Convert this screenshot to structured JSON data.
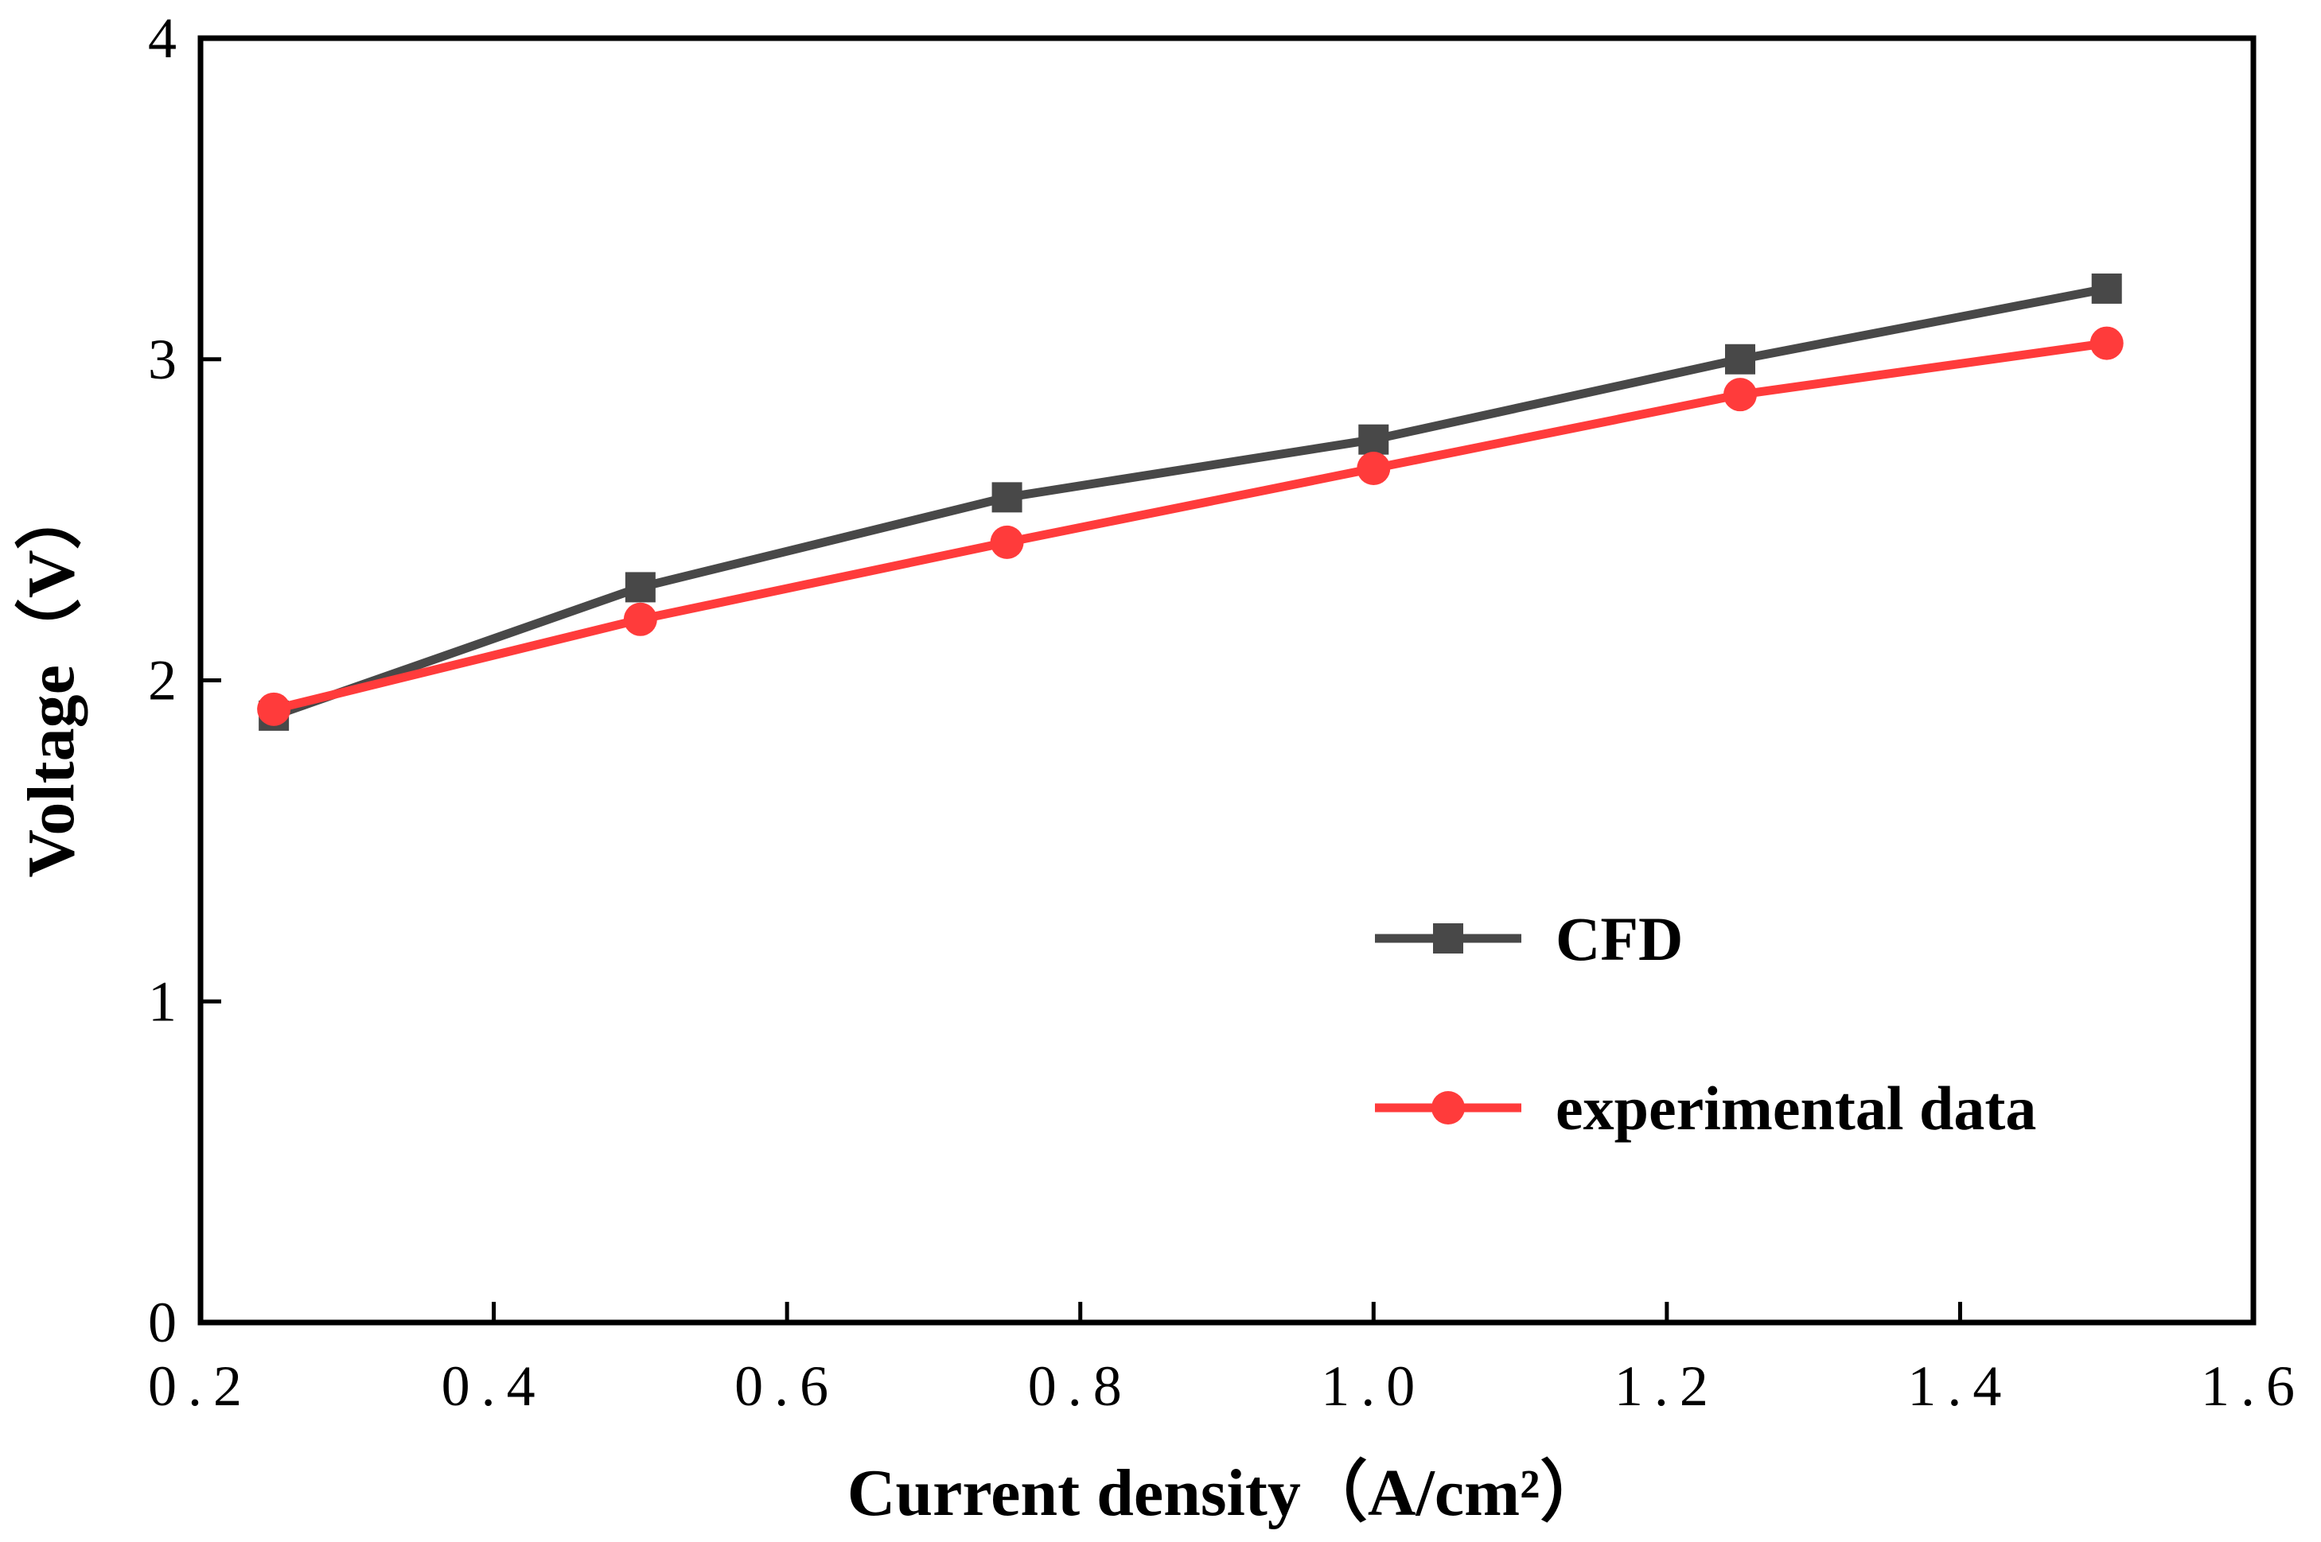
{
  "chart_data": {
    "type": "line",
    "xlabel": "Current density（A/cm²）",
    "ylabel": "Voltage（V）",
    "xlim": [
      0.2,
      1.6
    ],
    "ylim": [
      0,
      4
    ],
    "x_ticks": [
      0.2,
      0.4,
      0.6,
      0.8,
      1.0,
      1.2,
      1.4,
      1.6
    ],
    "x_tick_labels": [
      "0.2",
      "0.4",
      "0.6",
      "0.8",
      "1.0",
      "1.2",
      "1.4",
      "1.6"
    ],
    "y_ticks": [
      0,
      1,
      2,
      3,
      4
    ],
    "y_tick_labels": [
      "0",
      "1",
      "2",
      "3",
      "4"
    ],
    "grid": false,
    "legend_position": "bottom-right",
    "x": [
      0.25,
      0.5,
      0.75,
      1.0,
      1.25,
      1.5
    ],
    "series": [
      {
        "name": "CFD",
        "marker": "square",
        "color": "#484848",
        "values": [
          1.89,
          2.29,
          2.57,
          2.75,
          3.0,
          3.22
        ]
      },
      {
        "name": "experimental data",
        "marker": "circle",
        "color": "#ff3b3b",
        "values": [
          1.91,
          2.19,
          2.43,
          2.66,
          2.89,
          3.05
        ]
      }
    ]
  }
}
